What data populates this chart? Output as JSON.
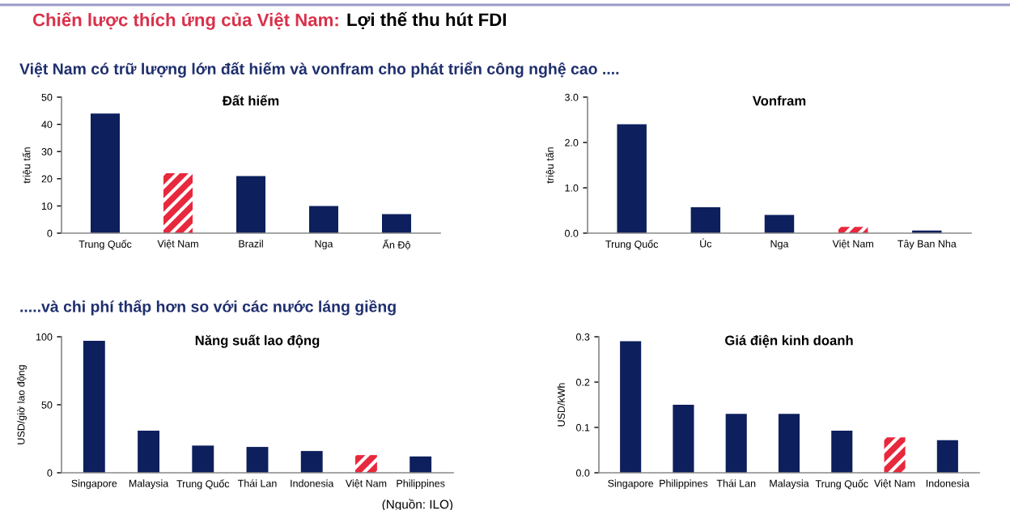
{
  "chart_data": [
    {
      "type": "bar",
      "title": "Đất hiếm",
      "subtitle": "Việt Nam có trữ lượng lớn đất hiếm và vonfram cho phát triển công nghệ cao ....",
      "ylabel": "triệu tấn",
      "annotations": [
        "Chiến lược thích ứng của Việt Nam:",
        "Lợi thế thu hút FDI"
      ],
      "categories": [
        "Trung Quốc",
        "Việt Nam",
        "Brazil",
        "Nga",
        "Ấn Độ"
      ],
      "values": [
        44,
        22,
        21,
        10,
        7
      ],
      "colors": [
        "#0d1f5c",
        "#e8283c",
        "#0d1f5c",
        "#0d1f5c",
        "#0d1f5c"
      ],
      "ylim": [
        0,
        50
      ],
      "yticks": [
        0,
        10,
        20,
        30,
        40,
        50
      ],
      "grid": false
    },
    {
      "type": "bar",
      "title": "Vonfram",
      "ylabel": "triệu tấn",
      "categories": [
        "Trung Quốc",
        "Úc",
        "Nga",
        "Việt Nam",
        "Tây Ban Nha"
      ],
      "values": [
        2.4,
        0.57,
        0.4,
        0.14,
        0.06
      ],
      "colors": [
        "#0d1f5c",
        "#0d1f5c",
        "#0d1f5c",
        "#e8283c",
        "#0d1f5c"
      ],
      "ylim": [
        0,
        3
      ],
      "yticks": [
        {
          "value": 0,
          "label": "0.0"
        },
        {
          "value": 1,
          "label": "1.0"
        },
        {
          "value": 2,
          "label": "2.0"
        },
        {
          "value": 3,
          "label": "3.0"
        }
      ],
      "grid": false
    },
    {
      "type": "bar",
      "title": "Năng suất lao động",
      "subtitle": ".....và chi phí thấp hơn so với các nước láng giềng",
      "ylabel": "USD/giờ lao động",
      "annotations": [
        "(Nguồn: ILO)"
      ],
      "categories": [
        "Singapore",
        "Malaysia",
        "Trung Quốc",
        "Thái Lan",
        "Indonesia",
        "Việt Nam",
        "Philippines"
      ],
      "values": [
        97,
        31,
        20,
        19,
        16,
        13,
        12
      ],
      "colors": [
        "#0d1f5c",
        "#0d1f5c",
        "#0d1f5c",
        "#0d1f5c",
        "#0d1f5c",
        "#e8283c",
        "#0d1f5c"
      ],
      "ylim": [
        0,
        100
      ],
      "yticks": [
        0,
        50,
        100
      ],
      "grid": false
    },
    {
      "type": "bar",
      "title": "Giá điện kinh doanh",
      "ylabel": "USD/kWh",
      "categories": [
        "Singapore",
        "Philippines",
        "Thái Lan",
        "Malaysia",
        "Trung Quốc",
        "Việt Nam",
        "Indonesia"
      ],
      "values": [
        0.29,
        0.15,
        0.13,
        0.13,
        0.093,
        0.078,
        0.072
      ],
      "colors": [
        "#0d1f5c",
        "#0d1f5c",
        "#0d1f5c",
        "#0d1f5c",
        "#0d1f5c",
        "#e8283c",
        "#0d1f5c"
      ],
      "ylim": [
        0,
        0.3
      ],
      "yticks": [
        {
          "value": 0,
          "label": "0.0"
        },
        0.1,
        0.2,
        0.3
      ],
      "grid": false
    }
  ]
}
